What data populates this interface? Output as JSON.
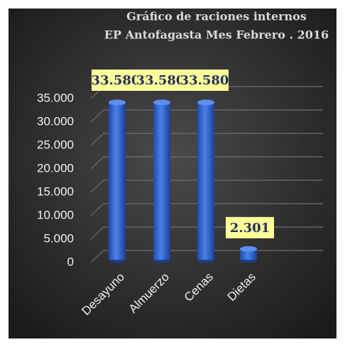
{
  "chart_data": {
    "type": "bar",
    "title": "Gráfico de raciones internos",
    "subtitle": "EP Antofagasta   Mes Febrero . 2016",
    "categories": [
      "Desayuno",
      "Almuerzo",
      "Cenas",
      "Dietas"
    ],
    "values": [
      33580,
      33580,
      33580,
      2301
    ],
    "value_labels": [
      "33.580",
      "33.580",
      "33.580",
      "2.301"
    ],
    "color": "#3a6fd6",
    "ylim": [
      0,
      35000
    ],
    "yticks": [
      0,
      {
        "value": 5000,
        "label": "5.000"
      },
      {
        "value": 10000,
        "label": "10.000"
      },
      {
        "value": 15000,
        "label": "15.000"
      },
      {
        "value": 20000,
        "label": "20.000"
      },
      {
        "value": 25000,
        "label": "25.000"
      },
      {
        "value": 30000,
        "label": "30.000"
      },
      {
        "value": 35000,
        "label": "35.000"
      }
    ],
    "grid": true
  }
}
